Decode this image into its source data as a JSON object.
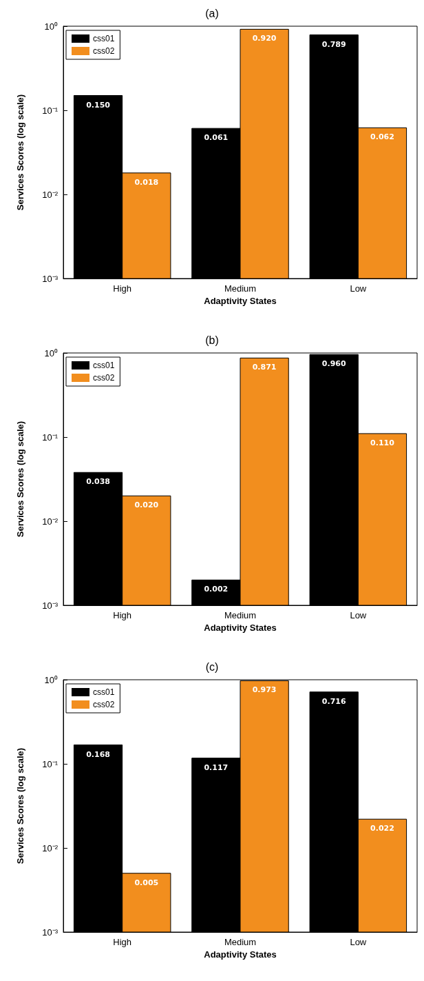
{
  "chart_data": [
    {
      "type": "bar",
      "title": "(a)",
      "xlabel": "Adaptivity States",
      "ylabel": "Services Scores (log scale)",
      "categories": [
        "High",
        "Medium",
        "Low"
      ],
      "log": "y",
      "ylim": [
        0.001,
        1
      ],
      "yticks": [
        {
          "value": 0.001,
          "label": "10⁻³"
        },
        {
          "value": 0.01,
          "label": "10⁻²"
        },
        {
          "value": 0.1,
          "label": "10⁻¹"
        },
        {
          "value": 1,
          "label": "10⁰"
        }
      ],
      "grid": false,
      "legend": "top left",
      "series": [
        {
          "name": "css01",
          "color": "#000000",
          "values": [
            0.15,
            0.061,
            0.789
          ],
          "value_labels": [
            "0.150",
            "0.061",
            "0.789"
          ]
        },
        {
          "name": "css02",
          "color": "#f28e1e",
          "values": [
            0.018,
            0.92,
            0.062
          ],
          "value_labels": [
            "0.018",
            "0.920",
            "0.062"
          ]
        }
      ]
    },
    {
      "type": "bar",
      "title": "(b)",
      "xlabel": "Adaptivity States",
      "ylabel": "Services Scores (log scale)",
      "categories": [
        "High",
        "Medium",
        "Low"
      ],
      "log": "y",
      "ylim": [
        0.001,
        1
      ],
      "yticks": [
        {
          "value": 0.001,
          "label": "10⁻³"
        },
        {
          "value": 0.01,
          "label": "10⁻²"
        },
        {
          "value": 0.1,
          "label": "10⁻¹"
        },
        {
          "value": 1,
          "label": "10⁰"
        }
      ],
      "grid": false,
      "legend": "top left",
      "series": [
        {
          "name": "css01",
          "color": "#000000",
          "values": [
            0.038,
            0.002,
            0.96
          ],
          "value_labels": [
            "0.038",
            "0.002",
            "0.960"
          ]
        },
        {
          "name": "css02",
          "color": "#f28e1e",
          "values": [
            0.02,
            0.871,
            0.11
          ],
          "value_labels": [
            "0.020",
            "0.871",
            "0.110"
          ]
        }
      ]
    },
    {
      "type": "bar",
      "title": "(c)",
      "xlabel": "Adaptivity States",
      "ylabel": "Services Scores (log scale)",
      "categories": [
        "High",
        "Medium",
        "Low"
      ],
      "log": "y",
      "ylim": [
        0.001,
        1
      ],
      "yticks": [
        {
          "value": 0.001,
          "label": "10⁻³"
        },
        {
          "value": 0.01,
          "label": "10⁻²"
        },
        {
          "value": 0.1,
          "label": "10⁻¹"
        },
        {
          "value": 1,
          "label": "10⁰"
        }
      ],
      "grid": false,
      "legend": "top left",
      "series": [
        {
          "name": "css01",
          "color": "#000000",
          "values": [
            0.168,
            0.117,
            0.716
          ],
          "value_labels": [
            "0.168",
            "0.117",
            "0.716"
          ]
        },
        {
          "name": "css02",
          "color": "#f28e1e",
          "values": [
            0.005,
            0.973,
            0.022
          ],
          "value_labels": [
            "0.005",
            "0.973",
            "0.022"
          ]
        }
      ]
    }
  ]
}
